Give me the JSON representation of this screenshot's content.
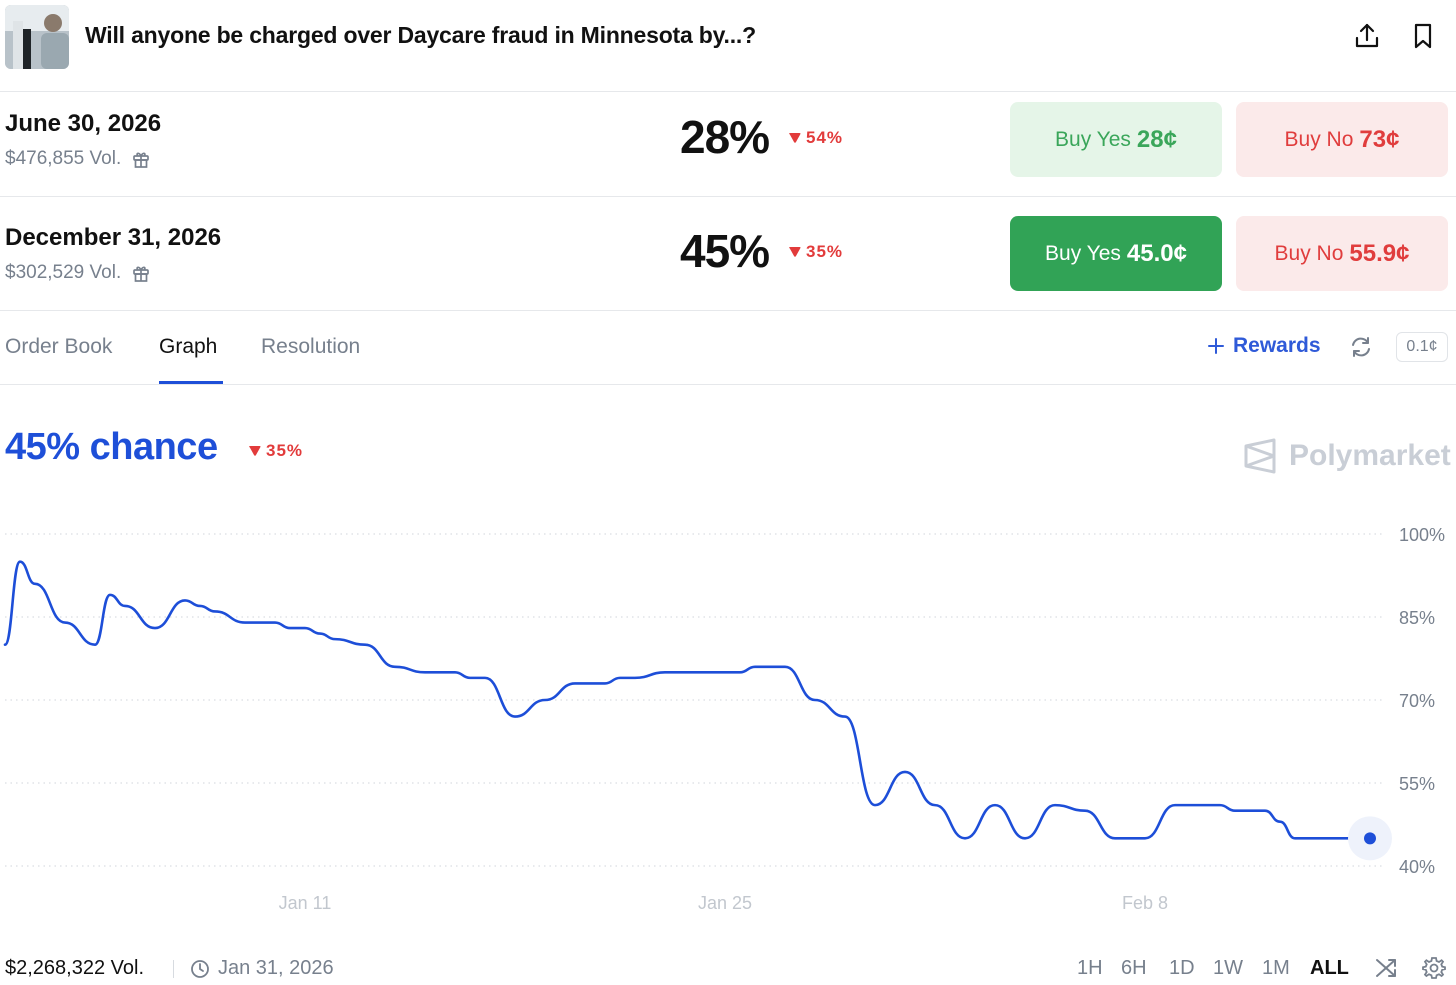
{
  "header": {
    "title": "Will anyone be charged over Daycare fraud in Minnesota by...?",
    "share_icon": "share-icon",
    "bookmark_icon": "bookmark-icon"
  },
  "markets": [
    {
      "date": "June 30, 2026",
      "volume": "$476,855 Vol.",
      "percent": "28%",
      "change": "54%",
      "change_direction": "down",
      "yes_label": "Buy Yes",
      "yes_price": "28¢",
      "no_label": "Buy No",
      "no_price": "73¢",
      "selected": false
    },
    {
      "date": "December 31, 2026",
      "volume": "$302,529 Vol.",
      "percent": "45%",
      "change": "35%",
      "change_direction": "down",
      "yes_label": "Buy Yes",
      "yes_price": "45.0¢",
      "no_label": "Buy No",
      "no_price": "55.9¢",
      "selected": true
    }
  ],
  "tabs": [
    "Order Book",
    "Graph",
    "Resolution"
  ],
  "active_tab": "Graph",
  "rewards_label": "Rewards",
  "tick_size": "0.1¢",
  "chance_label": "45% chance",
  "chance_change": "35%",
  "brand": "Polymarket",
  "colors": {
    "accent": "#1e4fd8",
    "line": "#1d4ed8",
    "yes": "#31a356",
    "no": "#e03d3d",
    "down": "#e23b3b"
  },
  "chart_data": {
    "type": "line",
    "series": [
      {
        "x": [
          "2026-01-01",
          "2026-01-01",
          "2026-01-02",
          "2026-01-03",
          "2026-01-04",
          "2026-01-04",
          "2026-01-05",
          "2026-01-06",
          "2026-01-07",
          "2026-01-07",
          "2026-01-08",
          "2026-01-09",
          "2026-01-10",
          "2026-01-10",
          "2026-01-11",
          "2026-01-11",
          "2026-01-12",
          "2026-01-13",
          "2026-01-14",
          "2026-01-15",
          "2026-01-16",
          "2026-01-16",
          "2026-01-17",
          "2026-01-18",
          "2026-01-19",
          "2026-01-20",
          "2026-01-21",
          "2026-01-21",
          "2026-01-22",
          "2026-01-23",
          "2026-01-23",
          "2026-01-24",
          "2026-01-25",
          "2026-01-25",
          "2026-01-26",
          "2026-01-27",
          "2026-01-28",
          "2026-01-29",
          "2026-01-30",
          "2026-01-31",
          "2026-02-01",
          "2026-02-02",
          "2026-02-03",
          "2026-02-04",
          "2026-02-05",
          "2026-02-06",
          "2026-02-07",
          "2026-02-08",
          "2026-02-09",
          "2026-02-10",
          "2026-02-10",
          "2026-02-11",
          "2026-02-12",
          "2026-02-12",
          "2026-02-13",
          "2026-02-13",
          "2026-02-14",
          "2026-02-15",
          "2026-02-15"
        ],
        "y": [
          80,
          95,
          91,
          84,
          80,
          89,
          87,
          83,
          88,
          87,
          86,
          84,
          84,
          83,
          83,
          82,
          81,
          80,
          76,
          75,
          75,
          74,
          74,
          67,
          70,
          73,
          73,
          74,
          74,
          75,
          75,
          75,
          75,
          75,
          76,
          76,
          70,
          67,
          51,
          57,
          51,
          45,
          51,
          45,
          51,
          50,
          45,
          45,
          51,
          51,
          51,
          50,
          50,
          48,
          45,
          45,
          45,
          45,
          45
        ]
      }
    ],
    "y_ticks": [
      "100%",
      "85%",
      "70%",
      "55%",
      "40%"
    ],
    "x_ticks": [
      "Jan 11",
      "Jan 25",
      "Feb 8"
    ],
    "ylim": [
      40,
      100
    ],
    "grid": true,
    "current_value": 45
  },
  "footer": {
    "total_volume": "$2,268,322 Vol.",
    "end_date": "Jan 31, 2026",
    "ranges": [
      "1H",
      "6H",
      "1D",
      "1W",
      "1M",
      "ALL"
    ],
    "active_range": "ALL"
  }
}
